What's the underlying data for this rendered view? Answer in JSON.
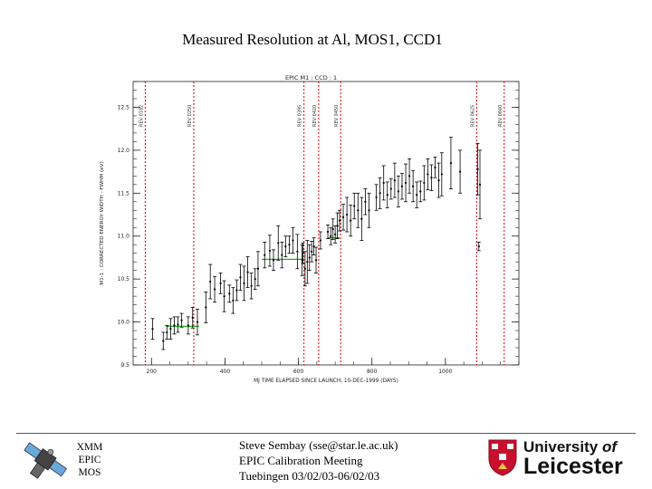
{
  "slide": {
    "title": "Measured Resolution at Al, MOS1, CCD1"
  },
  "footer": {
    "mission_lines": [
      "XMM",
      "EPIC",
      "MOS"
    ],
    "presenter_lines": [
      "Steve Sembay (sse@star.le.ac.uk)",
      "EPIC Calibration Meeting",
      "Tuebingen 03/02/03-06/02/03"
    ],
    "university_line1_a": "University",
    "university_line1_b": "of",
    "university_line2": "Leicester"
  },
  "colors": {
    "vline": "#dd0000",
    "fit": "#00aa00",
    "axis": "#222222"
  },
  "chart_data": {
    "type": "scatter",
    "title": "EPIC M1 : CCD : 1",
    "xlabel": "MJ TIME ELAPSED SINCE LAUNCH, 10-DEC-1999 (DAYS)",
    "ylabel": "M1-1 : CORRECTED ENERGY WIDTH - FWHM (eV)",
    "xlim": [
      150,
      1200
    ],
    "ylim": [
      9.5,
      12.8
    ],
    "xticks": [
      200,
      400,
      600,
      800,
      1000
    ],
    "xtick_labels": [
      "200",
      "400",
      "600",
      "800",
      "1000"
    ],
    "yticks": [
      9.5,
      10.0,
      10.5,
      11.0,
      11.5,
      12.0,
      12.5
    ],
    "ytick_labels": [
      "9.5",
      "10.0",
      "10.5",
      "11.0",
      "11.5",
      "12.0",
      "12.5"
    ],
    "vertical_lines": [
      {
        "x": 183,
        "label": "REV 0182"
      },
      {
        "x": 315,
        "label": "REV 0250"
      },
      {
        "x": 615,
        "label": "REV 0395"
      },
      {
        "x": 655,
        "label": "REV 0420"
      },
      {
        "x": 715,
        "label": "REV 0450"
      },
      {
        "x": 1085,
        "label": "REV 0625"
      },
      {
        "x": 1160,
        "label": "REV 0660"
      }
    ],
    "fit_segments": [
      {
        "x": [
          240,
          330
        ],
        "y": [
          9.95,
          9.95
        ]
      },
      {
        "x": [
          500,
          615
        ],
        "y": [
          10.73,
          10.73
        ]
      },
      {
        "x": [
          680,
          712
        ],
        "y": [
          10.98,
          10.98
        ]
      }
    ],
    "points": {
      "x": [
        203,
        232,
        242,
        252,
        262,
        272,
        282,
        300,
        312,
        325,
        348,
        360,
        372,
        388,
        398,
        412,
        422,
        432,
        442,
        452,
        462,
        472,
        482,
        490,
        508,
        522,
        532,
        545,
        555,
        565,
        575,
        585,
        597,
        610,
        612,
        618,
        624,
        630,
        636,
        642,
        648,
        660,
        680,
        688,
        694,
        700,
        706,
        712,
        722,
        732,
        742,
        752,
        762,
        772,
        782,
        792,
        812,
        822,
        832,
        842,
        852,
        862,
        872,
        882,
        892,
        902,
        912,
        922,
        932,
        942,
        952,
        962,
        972,
        982,
        990,
        1015,
        1040,
        1088,
        1091,
        1094
      ],
      "y": [
        9.92,
        9.78,
        9.88,
        9.92,
        9.96,
        9.97,
        10.02,
        9.96,
        10.05,
        10.0,
        10.17,
        10.47,
        10.38,
        10.45,
        10.3,
        10.33,
        10.25,
        10.37,
        10.52,
        10.45,
        10.58,
        10.42,
        10.5,
        10.62,
        10.78,
        10.83,
        10.72,
        10.92,
        10.78,
        10.88,
        10.9,
        10.95,
        10.82,
        10.72,
        10.8,
        10.62,
        10.7,
        10.75,
        10.82,
        10.88,
        10.72,
        10.95,
        11.05,
        11.0,
        11.08,
        11.02,
        11.12,
        11.18,
        11.22,
        11.25,
        11.18,
        11.35,
        11.3,
        11.2,
        11.4,
        11.3,
        11.45,
        11.5,
        11.62,
        11.48,
        11.55,
        11.65,
        11.52,
        11.58,
        11.62,
        11.7,
        11.58,
        11.48,
        11.52,
        11.62,
        11.72,
        11.68,
        11.8,
        11.65,
        11.72,
        11.85,
        11.75,
        11.78,
        10.88,
        11.6
      ],
      "yerr": [
        0.12,
        0.1,
        0.08,
        0.12,
        0.1,
        0.09,
        0.08,
        0.1,
        0.12,
        0.15,
        0.18,
        0.2,
        0.15,
        0.12,
        0.18,
        0.1,
        0.15,
        0.12,
        0.15,
        0.2,
        0.18,
        0.15,
        0.12,
        0.2,
        0.15,
        0.18,
        0.12,
        0.2,
        0.15,
        0.12,
        0.1,
        0.15,
        0.2,
        0.18,
        0.12,
        0.2,
        0.25,
        0.15,
        0.12,
        0.1,
        0.15,
        0.1,
        0.08,
        0.1,
        0.12,
        0.1,
        0.15,
        0.12,
        0.15,
        0.2,
        0.18,
        0.15,
        0.2,
        0.25,
        0.15,
        0.2,
        0.15,
        0.18,
        0.2,
        0.15,
        0.12,
        0.2,
        0.18,
        0.15,
        0.22,
        0.2,
        0.18,
        0.15,
        0.12,
        0.2,
        0.18,
        0.15,
        0.12,
        0.2,
        0.25,
        0.3,
        0.25,
        0.3,
        0.05,
        0.4
      ]
    }
  }
}
